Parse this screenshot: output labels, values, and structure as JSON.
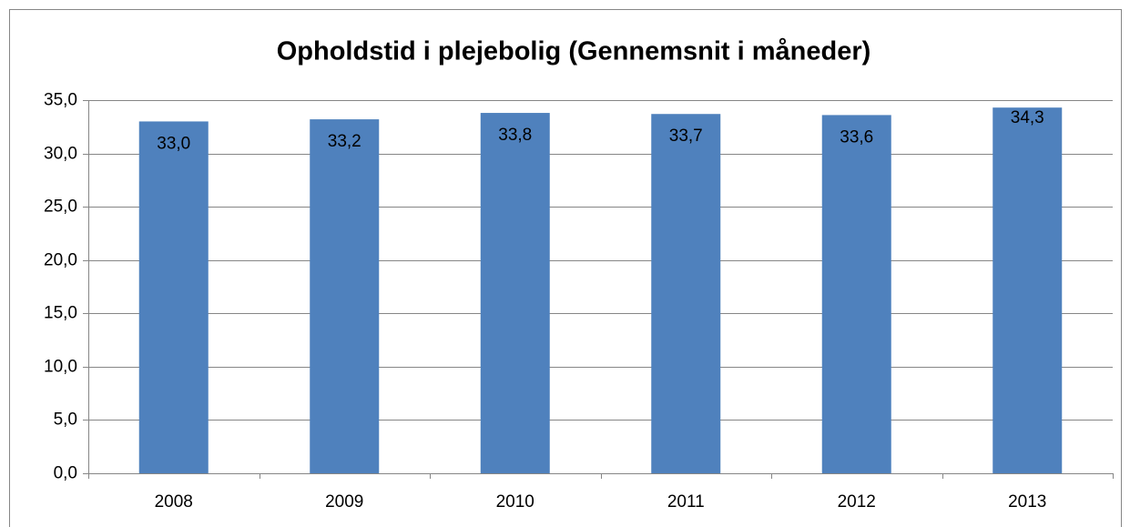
{
  "chart_data": {
    "type": "bar",
    "title": "Opholdstid i plejebolig (Gennemsnit i måneder)",
    "categories": [
      "2008",
      "2009",
      "2010",
      "2011",
      "2012",
      "2013"
    ],
    "values": [
      33.0,
      33.2,
      33.8,
      33.7,
      33.6,
      34.3
    ],
    "value_labels": [
      "33,0",
      "33,2",
      "33,8",
      "33,7",
      "33,6",
      "34,3"
    ],
    "color": "#4f81bd",
    "ylim": [
      0,
      35
    ],
    "yticks": [
      {
        "value": 0,
        "label": "0,0"
      },
      {
        "value": 5,
        "label": "5,0"
      },
      {
        "value": 10,
        "label": "10,0"
      },
      {
        "value": 15,
        "label": "15,0"
      },
      {
        "value": 20,
        "label": "20,0"
      },
      {
        "value": 25,
        "label": "25,0"
      },
      {
        "value": 30,
        "label": "30,0"
      },
      {
        "value": 35,
        "label": "35,0"
      }
    ],
    "grid": true
  }
}
